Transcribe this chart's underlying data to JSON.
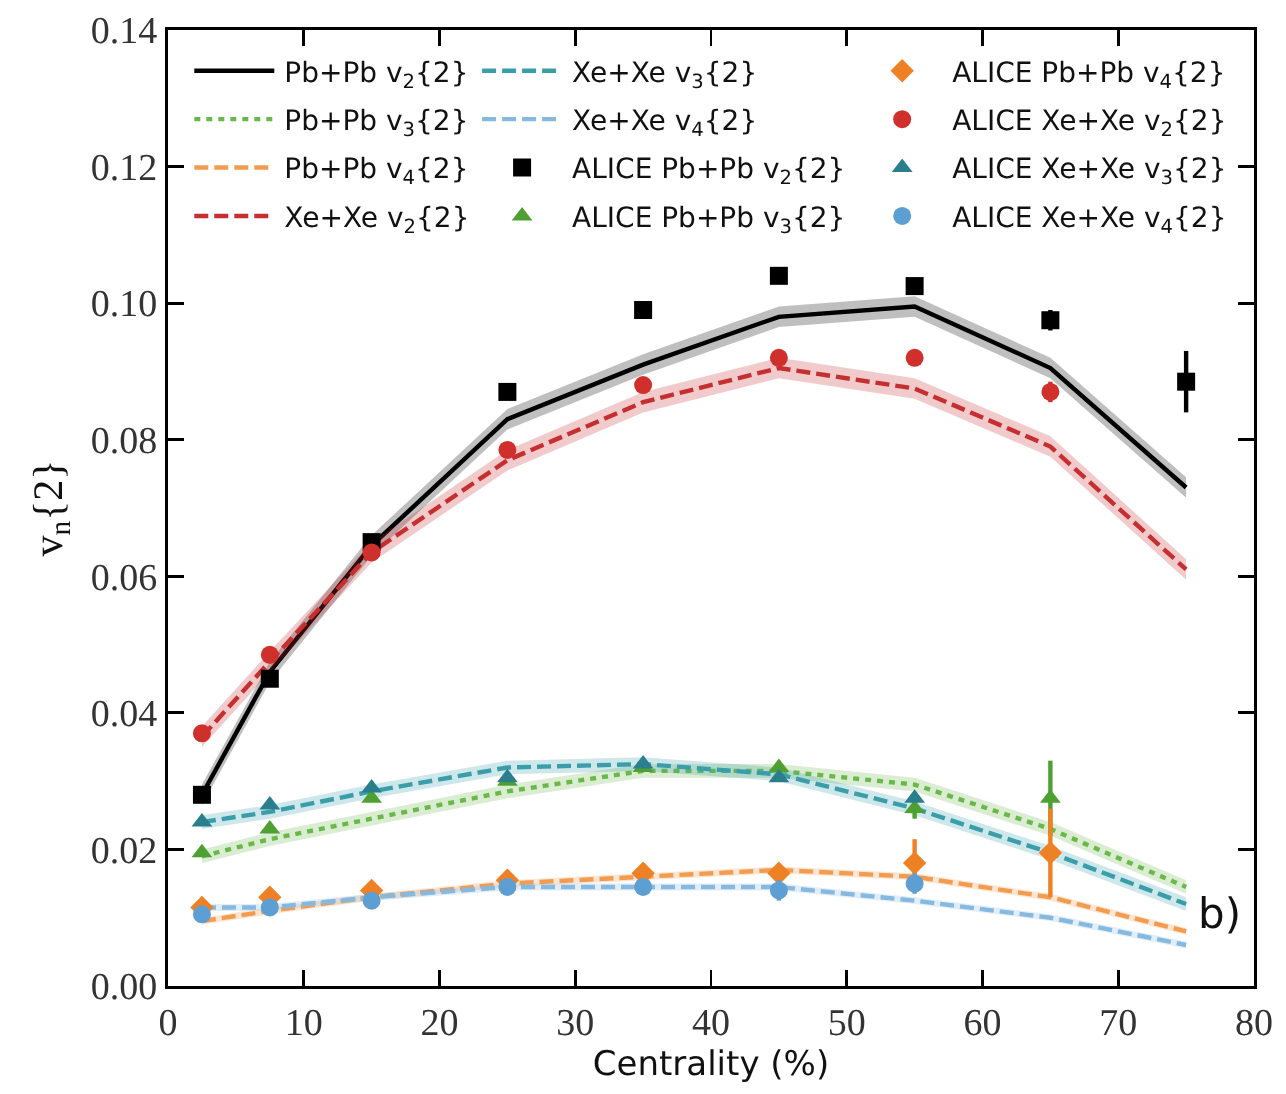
{
  "chart_data": {
    "type": "line",
    "xlabel": "Centrality (%)",
    "ylabel": "v$_{n}${2}",
    "x": [
      2.5,
      7.5,
      15,
      25,
      35,
      45,
      55,
      65,
      75
    ],
    "xlim": [
      0,
      80
    ],
    "xticks": [
      0,
      10,
      20,
      30,
      40,
      50,
      60,
      70,
      80
    ],
    "ylim": [
      0,
      0.14
    ],
    "yticks": [
      {
        "value": 0,
        "label": "0.00"
      },
      {
        "value": 0.02,
        "label": "0.02"
      },
      {
        "value": 0.04,
        "label": "0.04"
      },
      {
        "value": 0.06,
        "label": "0.06"
      },
      {
        "value": 0.08,
        "label": "0.08"
      },
      {
        "value": 0.1,
        "label": "0.10"
      },
      {
        "value": 0.12,
        "label": "0.12"
      },
      {
        "value": 0.14,
        "label": "0.14"
      }
    ],
    "legend": "top",
    "annotations": [
      "b)"
    ],
    "series": [
      {
        "name": "Pb+Pb v$_{2}${2}",
        "color": "#000000",
        "line_style": "solid",
        "marker": "none",
        "values": [
          0.028,
          0.046,
          0.0645,
          0.083,
          0.091,
          0.098,
          0.0995,
          0.0905,
          0.073
        ],
        "lower": [
          0.0265,
          0.0445,
          0.063,
          0.0815,
          0.0895,
          0.0965,
          0.098,
          0.089,
          0.0715
        ],
        "upper": [
          0.0295,
          0.0475,
          0.066,
          0.0845,
          0.0925,
          0.0995,
          0.101,
          0.092,
          0.0745
        ]
      },
      {
        "name": "Pb+Pb v$_{3}${2}",
        "color": "#6ab84a",
        "line_style": "dotted",
        "marker": "none",
        "values": [
          0.019,
          0.0215,
          0.0245,
          0.0285,
          0.0315,
          0.0315,
          0.0295,
          0.023,
          0.0145
        ],
        "lower": [
          0.018,
          0.0205,
          0.0235,
          0.0275,
          0.0305,
          0.0305,
          0.0285,
          0.022,
          0.0135
        ],
        "upper": [
          0.02,
          0.0225,
          0.0255,
          0.0295,
          0.0325,
          0.0325,
          0.0305,
          0.024,
          0.0155
        ]
      },
      {
        "name": "Pb+Pb v$_{4}${2}",
        "color": "#f39c50",
        "line_style": "dashed",
        "marker": "none",
        "values": [
          0.0095,
          0.011,
          0.013,
          0.015,
          0.016,
          0.017,
          0.016,
          0.013,
          0.008
        ],
        "lower": [
          0.009,
          0.0105,
          0.0125,
          0.0145,
          0.0155,
          0.0165,
          0.0155,
          0.0125,
          0.0075
        ],
        "upper": [
          0.01,
          0.0115,
          0.0135,
          0.0155,
          0.0165,
          0.0175,
          0.0165,
          0.0135,
          0.0085
        ]
      },
      {
        "name": "Xe+Xe v$_{2}${2}",
        "color": "#c62f2f",
        "line_style": "dashed",
        "marker": "none",
        "values": [
          0.0365,
          0.0475,
          0.0635,
          0.077,
          0.0855,
          0.0905,
          0.0875,
          0.079,
          0.061
        ],
        "lower": [
          0.035,
          0.046,
          0.062,
          0.0755,
          0.084,
          0.089,
          0.086,
          0.0775,
          0.0595
        ],
        "upper": [
          0.038,
          0.049,
          0.065,
          0.0785,
          0.087,
          0.092,
          0.089,
          0.0805,
          0.0625
        ]
      },
      {
        "name": "Xe+Xe v$_{3}${2}",
        "color": "#3a9eaa",
        "line_style": "dashed",
        "marker": "none",
        "values": [
          0.024,
          0.0255,
          0.0285,
          0.032,
          0.0325,
          0.031,
          0.026,
          0.0195,
          0.012
        ],
        "lower": [
          0.023,
          0.0245,
          0.0275,
          0.031,
          0.0315,
          0.03,
          0.025,
          0.0185,
          0.011
        ],
        "upper": [
          0.025,
          0.0265,
          0.0295,
          0.033,
          0.0335,
          0.032,
          0.027,
          0.0205,
          0.013
        ]
      },
      {
        "name": "Xe+Xe v$_{4}${2}",
        "color": "#86b9e0",
        "line_style": "dashed",
        "marker": "none",
        "values": [
          0.0115,
          0.0115,
          0.013,
          0.0145,
          0.0145,
          0.0145,
          0.0125,
          0.01,
          0.006
        ],
        "lower": [
          0.011,
          0.011,
          0.0125,
          0.014,
          0.014,
          0.014,
          0.012,
          0.0095,
          0.0055
        ],
        "upper": [
          0.012,
          0.012,
          0.0135,
          0.015,
          0.015,
          0.015,
          0.013,
          0.0105,
          0.0065
        ]
      },
      {
        "name": "ALICE Pb+Pb v$_{2}${2}",
        "type": "scatter",
        "color": "#000000",
        "marker": "square",
        "x": [
          2.5,
          7.5,
          15,
          25,
          35,
          45,
          55,
          65,
          75
        ],
        "values": [
          0.028,
          0.045,
          0.065,
          0.087,
          0.099,
          0.104,
          0.1025,
          0.0975,
          0.0885
        ],
        "errors": [
          null,
          null,
          null,
          null,
          null,
          null,
          null,
          0.0015,
          0.0045
        ]
      },
      {
        "name": "ALICE Pb+Pb v$_{3}${2}",
        "type": "scatter",
        "color": "#4fa032",
        "marker": "triangle",
        "x": [
          2.5,
          7.5,
          15,
          25,
          35,
          45,
          55,
          65
        ],
        "values": [
          0.0195,
          0.023,
          0.0275,
          0.03,
          0.032,
          0.032,
          0.026,
          0.0275
        ],
        "errors": [
          null,
          null,
          null,
          null,
          null,
          null,
          0.0015,
          0.0055
        ]
      },
      {
        "name": "ALICE Pb+Pb v$_{4}${2}",
        "type": "scatter",
        "color": "#ee8126",
        "marker": "diamond",
        "x": [
          2.5,
          7.5,
          15,
          25,
          35,
          45,
          55,
          65
        ],
        "values": [
          0.0115,
          0.013,
          0.014,
          0.0155,
          0.0165,
          0.0165,
          0.018,
          0.0195
        ],
        "errors": [
          null,
          null,
          null,
          null,
          null,
          0.001,
          0.0035,
          0.0065
        ]
      },
      {
        "name": "ALICE Xe+Xe v$_{2}${2}",
        "type": "scatter",
        "color": "#d0302b",
        "marker": "circle",
        "x": [
          2.5,
          7.5,
          15,
          25,
          35,
          45,
          55,
          65
        ],
        "values": [
          0.037,
          0.0485,
          0.0635,
          0.0785,
          0.088,
          0.092,
          0.092,
          0.087
        ],
        "errors": [
          null,
          null,
          null,
          null,
          null,
          null,
          null,
          0.0015
        ]
      },
      {
        "name": "ALICE Xe+Xe v$_{3}${2}",
        "type": "scatter",
        "color": "#2b7f8c",
        "marker": "triangle",
        "x": [
          2.5,
          7.5,
          15,
          25,
          35,
          45,
          55
        ],
        "values": [
          0.024,
          0.0265,
          0.029,
          0.0305,
          0.0325,
          0.0305,
          0.0275
        ]
      },
      {
        "name": "ALICE Xe+Xe v$_{4}${2}",
        "type": "scatter",
        "color": "#5e9fd3",
        "marker": "circle",
        "x": [
          2.5,
          7.5,
          15,
          25,
          35,
          45,
          55
        ],
        "values": [
          0.0105,
          0.0115,
          0.0125,
          0.0145,
          0.0145,
          0.014,
          0.015
        ],
        "errors": [
          null,
          null,
          null,
          null,
          null,
          0.0015,
          0.0015
        ]
      }
    ]
  }
}
